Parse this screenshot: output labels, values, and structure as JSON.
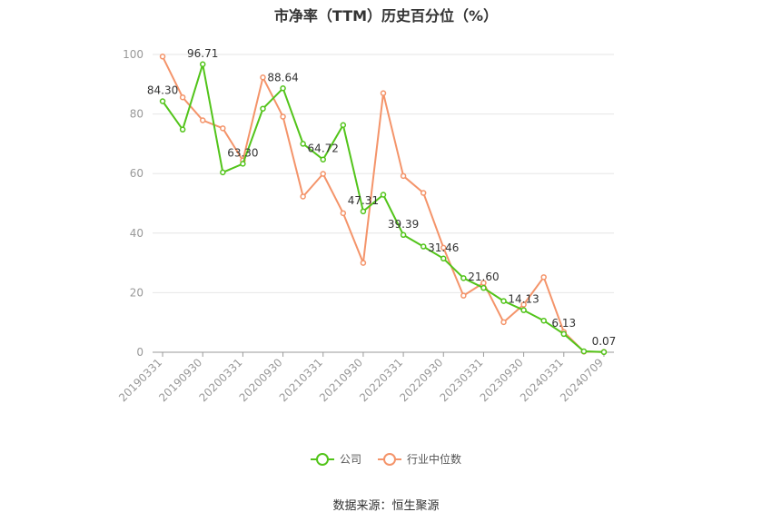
{
  "chart_data": {
    "type": "line",
    "title": "市净率（TTM）历史百分位（%）",
    "ylim": [
      0,
      100
    ],
    "yticks": [
      0,
      20,
      40,
      60,
      80,
      100
    ],
    "x": [
      "20190331",
      "20190630",
      "20190930",
      "20191231",
      "20200331",
      "20200630",
      "20200930",
      "20201231",
      "20210331",
      "20210630",
      "20210930",
      "20211231",
      "20220331",
      "20220630",
      "20220930",
      "20221231",
      "20230331",
      "20230630",
      "20230930",
      "20231231",
      "20240331",
      "20240630",
      "20240709"
    ],
    "xtick_labels": [
      "20190331",
      "20190930",
      "20200331",
      "20200930",
      "20210331",
      "20210930",
      "20220331",
      "20220930",
      "20230331",
      "20230930",
      "20240331",
      "20240709"
    ],
    "grid": true,
    "legend_position": "bottom",
    "series": [
      {
        "name": "公司",
        "color": "#52c41a",
        "values": [
          84.3,
          74.8,
          96.71,
          60.4,
          63.3,
          81.8,
          88.64,
          70.0,
          64.72,
          76.3,
          47.31,
          52.9,
          39.39,
          35.5,
          31.46,
          24.9,
          21.6,
          17.2,
          14.13,
          10.6,
          6.13,
          0.3,
          0.07
        ],
        "labels": {
          "0": "84.30",
          "2": "96.71",
          "4": "63.30",
          "6": "88.64",
          "8": "64.72",
          "10": "47.31",
          "12": "39.39",
          "14": "31.46",
          "16": "21.60",
          "18": "14.13",
          "20": "6.13",
          "22": "0.07"
        }
      },
      {
        "name": "行业中位数",
        "color": "#f4946a",
        "values": [
          99.3,
          85.6,
          77.9,
          75.2,
          64.4,
          92.3,
          79.1,
          52.3,
          59.9,
          46.7,
          30.0,
          87.0,
          59.2,
          53.5,
          35.1,
          19.0,
          23.3,
          10.1,
          16.0,
          25.2,
          6.8,
          0.2,
          0.1
        ],
        "labels": {}
      }
    ]
  },
  "source": "数据来源：恒生聚源"
}
